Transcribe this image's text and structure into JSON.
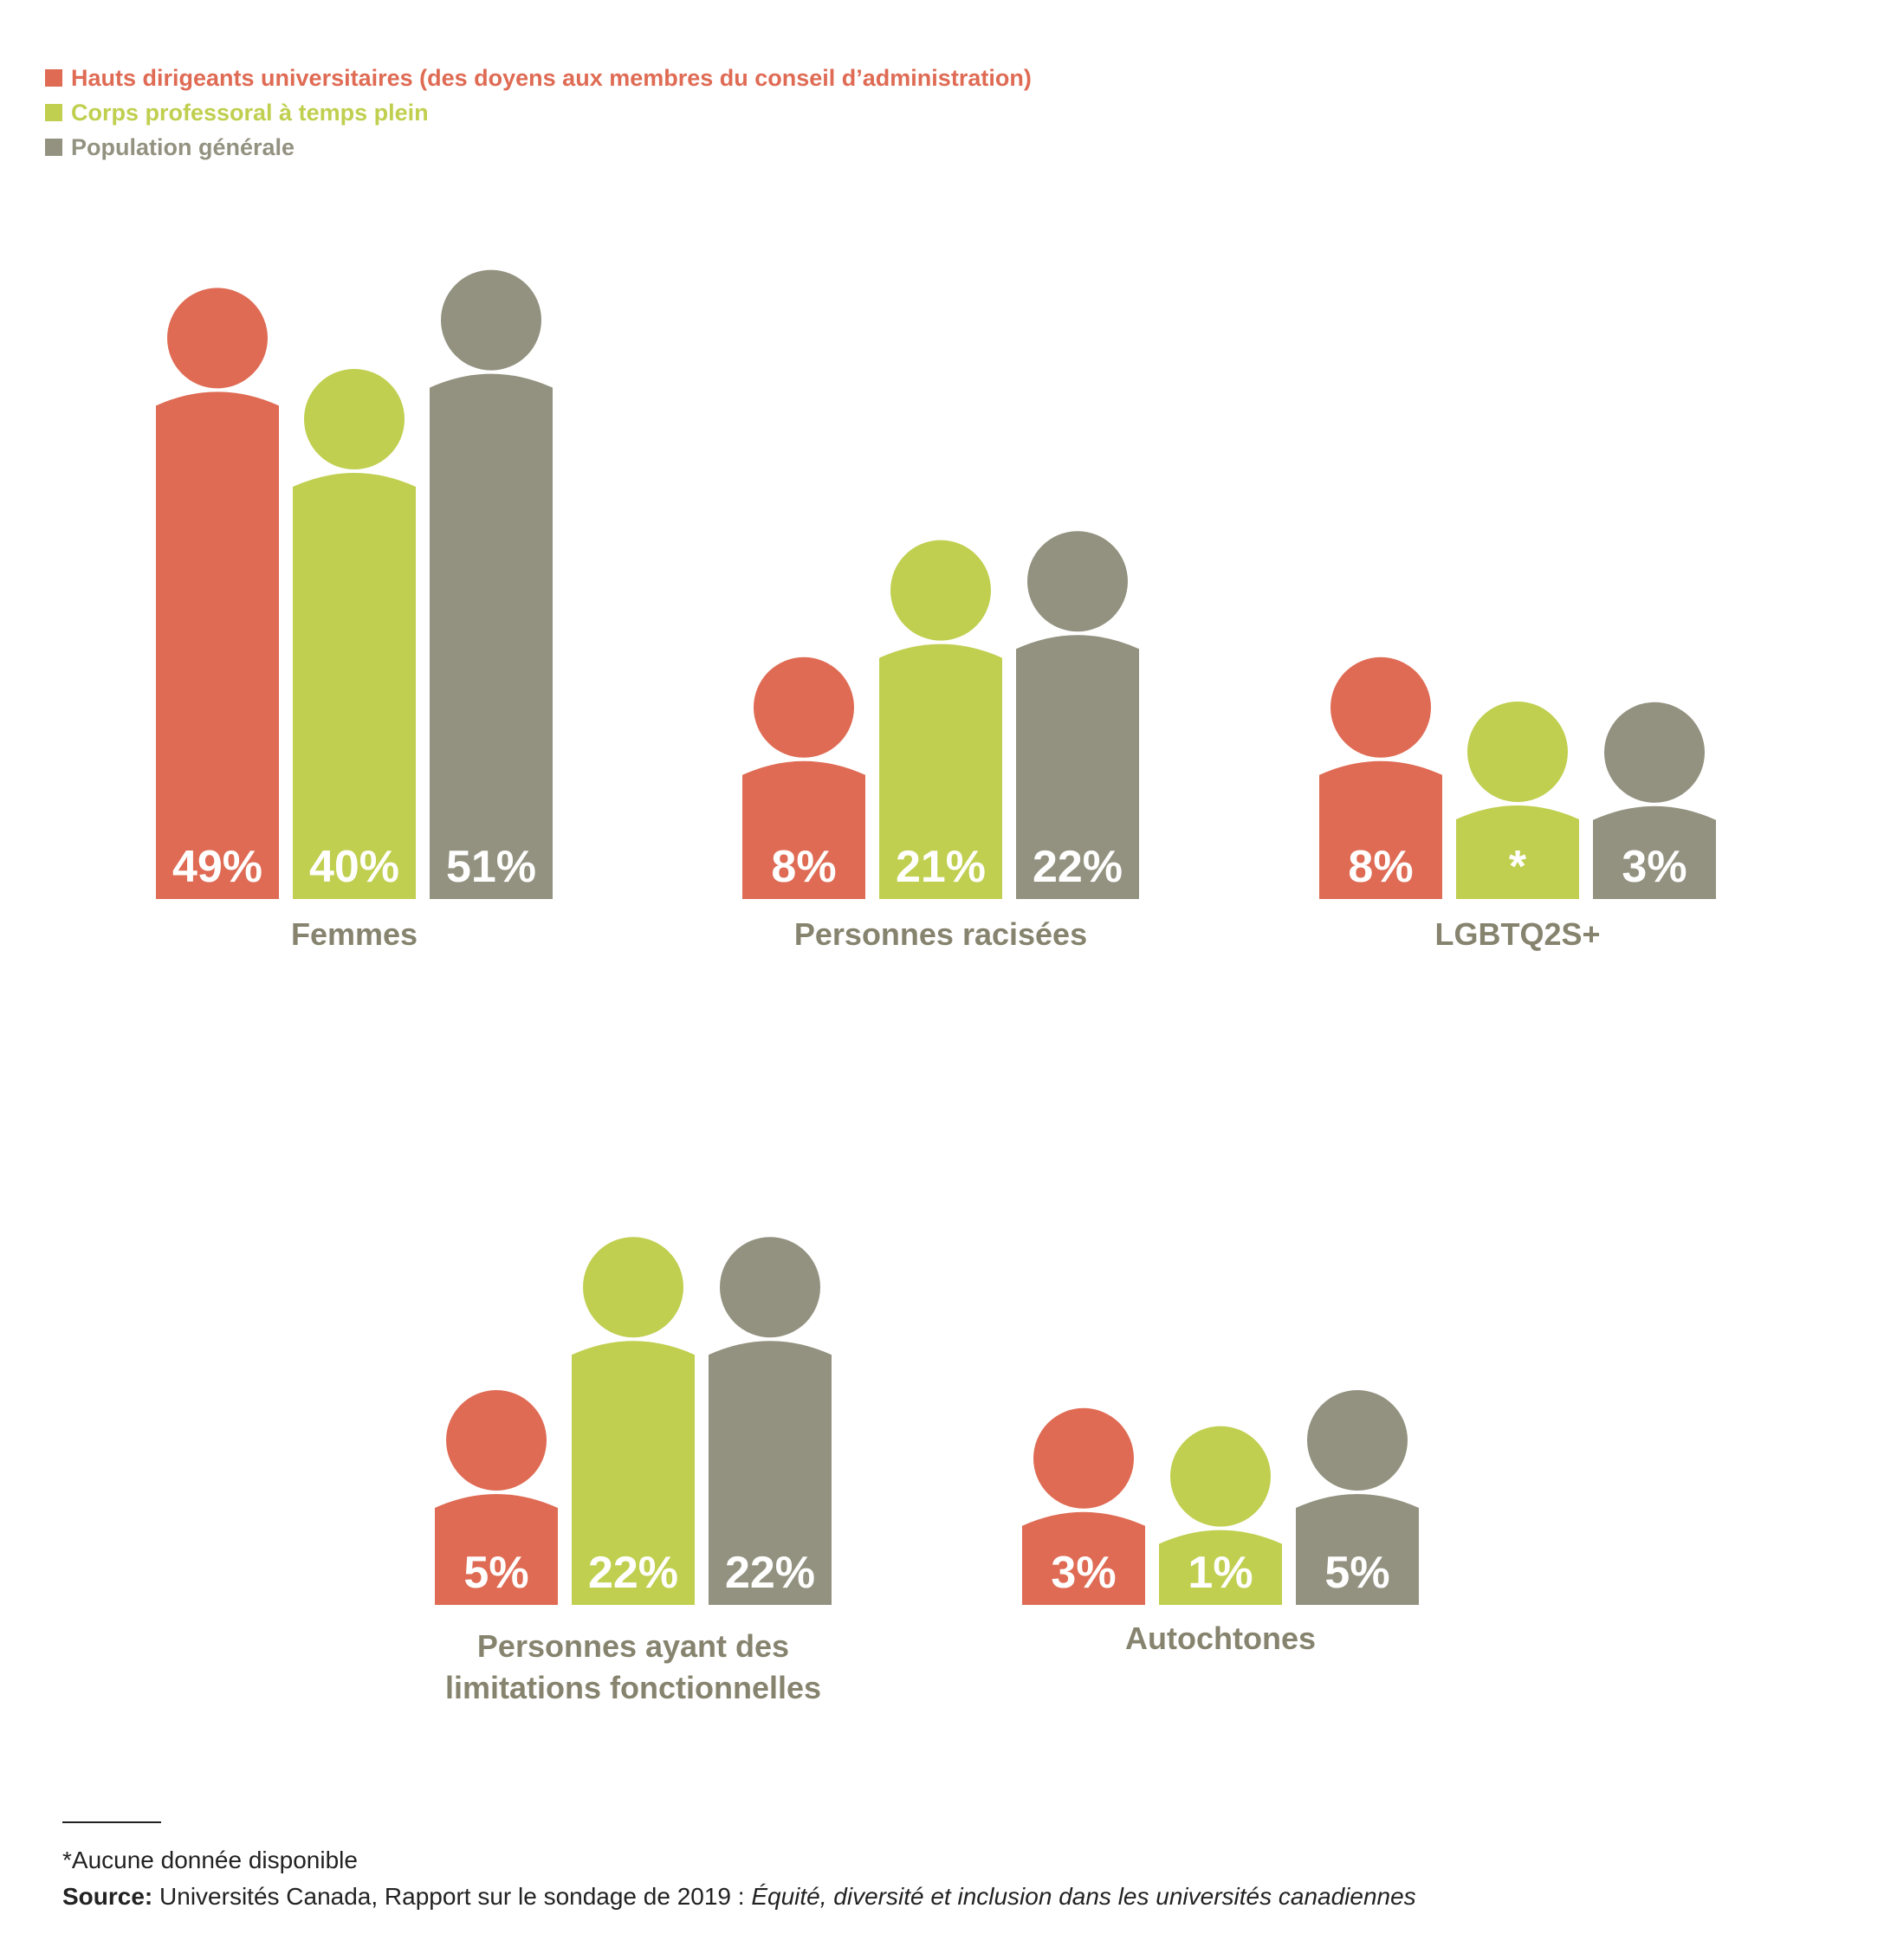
{
  "legend": [
    {
      "label": "Hauts dirigeants universitaires (des doyens aux membres du conseil d’administration)",
      "color": "#df6b54"
    },
    {
      "label": "Corps professoral à temps plein",
      "color": "#c0cf4f"
    },
    {
      "label": "Population générale",
      "color": "#939280"
    }
  ],
  "chart_data": {
    "type": "bar",
    "series": [
      {
        "name": "Hauts dirigeants universitaires (des doyens aux membres du conseil d’administration)",
        "color": "#df6b54"
      },
      {
        "name": "Corps professoral à temps plein",
        "color": "#c0cf4f"
      },
      {
        "name": "Population générale",
        "color": "#939280"
      }
    ],
    "groups": [
      {
        "label": "Femmes",
        "values": [
          49,
          40,
          51
        ],
        "labels": [
          "49%",
          "40%",
          "51%"
        ]
      },
      {
        "label": "Personnes racisées",
        "values": [
          8,
          21,
          22
        ],
        "labels": [
          "8%",
          "21%",
          "22%"
        ]
      },
      {
        "label": "LGBTQ2S+",
        "values": [
          8,
          null,
          3
        ],
        "labels": [
          "8%",
          "*",
          "3%"
        ]
      },
      {
        "label": "Personnes ayant des limitations fonctionnelles",
        "label_lines": [
          "Personnes ayant des",
          "limitations fonctionnelles"
        ],
        "values": [
          5,
          22,
          22
        ],
        "labels": [
          "5%",
          "22%",
          "22%"
        ]
      },
      {
        "label": "Autochtones",
        "values": [
          3,
          1,
          5
        ],
        "labels": [
          "3%",
          "1%",
          "5%"
        ]
      }
    ]
  },
  "footnote": {
    "note": "*Aucune donnée disponible",
    "source_label": "Source:",
    "source_text": " Universités Canada, Rapport sur le sondage de 2019 : ",
    "source_title": "Équité, diversité et inclusion dans les universités canadiennes"
  }
}
